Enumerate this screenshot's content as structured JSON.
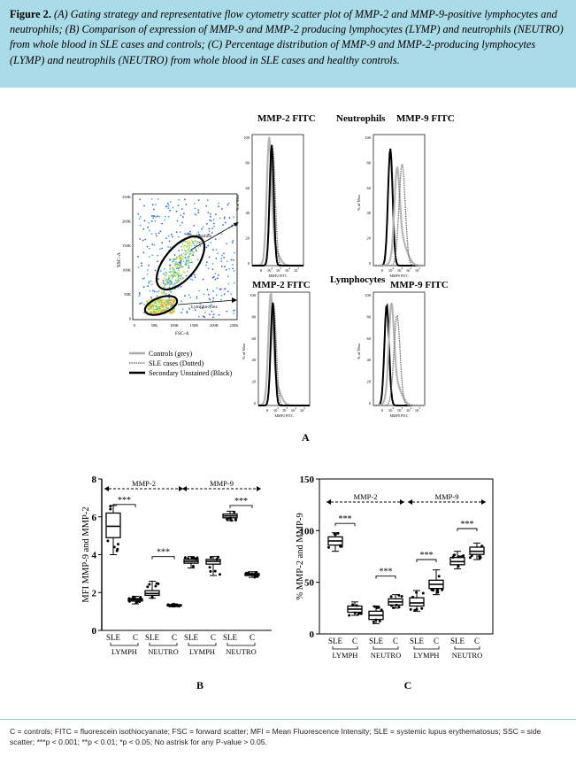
{
  "caption": {
    "label": "Figure 2.",
    "text": "(A) Gating strategy and representative flow cytometry scatter plot of MMP-2 and MMP-9-positive lymphocytes and neutrophils; (B) Comparison of expression of MMP-9 and MMP-2 producing lymphocytes (LYMP) and neutrophils (NEUTRO) from whole blood in SLE cases and controls; (C) Percentage distribution of MMP-9 and MMP-2-producing lymphocytes (LYMP) and neutrophils (NEUTRO) from whole blood in SLE cases and healthy controls."
  },
  "panel_a": {
    "letter": "A",
    "scatter": {
      "ylabel": "SSC-A",
      "xlabel": "FSC-A",
      "yticks": [
        "250K",
        "200K",
        "150K",
        "100K",
        "50K",
        "0"
      ],
      "xticks": [
        "0",
        "50K",
        "100K",
        "150K",
        "200K",
        "250K"
      ],
      "gate_neutrophils": "Neutrophils",
      "gate_lymphocytes": "Lymphocytes"
    },
    "header_top": {
      "left": "MMP-2 FITC",
      "mid": "Neutrophils",
      "right": "MMP-9 FITC"
    },
    "header_bottom": {
      "left": "MMP-2 FITC",
      "mid": "Lymphocytes",
      "right": "MMP-9 FITC"
    },
    "hist_ylabel": "% of Max",
    "hist_yticks": [
      "100",
      "80",
      "60",
      "40",
      "20",
      "0"
    ],
    "hist_xticks": [
      "0",
      "10",
      "10",
      "10",
      "10"
    ],
    "hist_xexps": [
      "",
      "2",
      "3",
      "4",
      "5"
    ],
    "hist_xlabels": {
      "tl": "MMP2 FITC",
      "tr": "MMP9 FITC",
      "bl": "MMP2 FITC",
      "br": "MMP9 FITC"
    },
    "legend": [
      "Controls (grey)",
      "SLE cases (Dotted)",
      "Secondary Unstained (Black)"
    ]
  },
  "chart_data": [
    {
      "type": "box",
      "panel": "B",
      "ylabel": "MFI MMP-9 and MMP-2",
      "ylim": [
        0,
        8
      ],
      "yticks": [
        "0",
        "2",
        "4",
        "6",
        "8"
      ],
      "categories": [
        "SLE",
        "C",
        "SLE",
        "C",
        "SLE",
        "C",
        "SLE",
        "C"
      ],
      "group_labels": [
        "LYMPH",
        "NEUTRO",
        "LYMPH",
        "NEUTRO"
      ],
      "bracket_labels": [
        "MMP-2",
        "MMP-9"
      ],
      "significance": [
        "***",
        "***",
        "***"
      ],
      "series": [
        {
          "values": [
            5.6,
            1.6,
            1.95,
            1.3,
            3.65,
            3.65,
            6.05,
            2.95
          ]
        }
      ],
      "boxes": [
        {
          "min": 4.0,
          "q1": 4.9,
          "median": 5.5,
          "q3": 6.2,
          "max": 6.6
        },
        {
          "min": 1.4,
          "q1": 1.55,
          "median": 1.62,
          "q3": 1.68,
          "max": 1.8
        },
        {
          "min": 1.7,
          "q1": 1.85,
          "median": 1.95,
          "q3": 2.1,
          "max": 2.6
        },
        {
          "min": 1.25,
          "q1": 1.3,
          "median": 1.33,
          "q3": 1.36,
          "max": 1.4
        },
        {
          "min": 3.3,
          "q1": 3.55,
          "median": 3.65,
          "q3": 3.75,
          "max": 3.9
        },
        {
          "min": 2.9,
          "q1": 3.5,
          "median": 3.65,
          "q3": 3.75,
          "max": 3.9
        },
        {
          "min": 5.8,
          "q1": 5.95,
          "median": 6.05,
          "q3": 6.15,
          "max": 6.3
        },
        {
          "min": 2.8,
          "q1": 2.9,
          "median": 2.95,
          "q3": 3.0,
          "max": 3.1
        }
      ],
      "letter": "B"
    },
    {
      "type": "box",
      "panel": "C",
      "ylabel": "% MMP-2 and MMP-9",
      "ylim": [
        0,
        150
      ],
      "yticks": [
        "0",
        "50",
        "100",
        "150"
      ],
      "categories": [
        "SLE",
        "C",
        "SLE",
        "C",
        "SLE",
        "C",
        "SLE",
        "C"
      ],
      "group_labels": [
        "LYMPH",
        "NEUTRO",
        "LYMPH",
        "NEUTRO"
      ],
      "bracket_labels": [
        "MMP-2",
        "MMP-9"
      ],
      "significance": [
        "***",
        "***",
        "***",
        "***"
      ],
      "series": [
        {
          "values": [
            90,
            24,
            18,
            31,
            30,
            48,
            70,
            80
          ]
        }
      ],
      "boxes": [
        {
          "min": 80,
          "q1": 86,
          "median": 90,
          "q3": 94,
          "max": 98
        },
        {
          "min": 18,
          "q1": 21,
          "median": 24,
          "q3": 27,
          "max": 31
        },
        {
          "min": 10,
          "q1": 14,
          "median": 18,
          "q3": 22,
          "max": 27
        },
        {
          "min": 25,
          "q1": 28,
          "median": 31,
          "q3": 34,
          "max": 38
        },
        {
          "min": 22,
          "q1": 27,
          "median": 30,
          "q3": 35,
          "max": 42
        },
        {
          "min": 38,
          "q1": 44,
          "median": 48,
          "q3": 52,
          "max": 62
        },
        {
          "min": 63,
          "q1": 67,
          "median": 70,
          "q3": 74,
          "max": 80
        },
        {
          "min": 72,
          "q1": 77,
          "median": 80,
          "q3": 84,
          "max": 88
        }
      ],
      "letter": "C"
    }
  ],
  "footnote": "C = controls; FITC = fluorescein isothiocyanate; FSC = forward scatter; MFI = Mean Fluorescence Intensity; SLE = systemic lupus erythematosus; SSC = side scatter; ***p < 0.001; **p < 0.01; *p < 0.05; No astrisk for any P-value > 0.05."
}
